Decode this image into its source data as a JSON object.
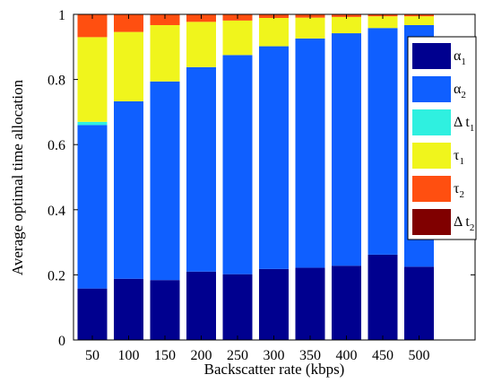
{
  "chart_data": {
    "type": "bar",
    "stacked": true,
    "categories": [
      "50",
      "100",
      "150",
      "200",
      "250",
      "300",
      "350",
      "400",
      "450",
      "500"
    ],
    "xlabel": "Backscatter rate (kbps)",
    "ylabel": "Average optimal time allocation",
    "ylim": [
      0,
      1
    ],
    "yticks": [
      "0",
      "0.2",
      "0.4",
      "0.6",
      "0.8",
      "1"
    ],
    "grid": false,
    "legend_position": "right",
    "series": [
      {
        "name": "α",
        "subscript": "1",
        "color": "#00008f",
        "values": [
          0.158,
          0.188,
          0.184,
          0.21,
          0.202,
          0.218,
          0.222,
          0.228,
          0.262,
          0.225
        ]
      },
      {
        "name": "α",
        "subscript": "2",
        "color": "#0f5fff",
        "values": [
          0.502,
          0.545,
          0.61,
          0.628,
          0.673,
          0.684,
          0.704,
          0.714,
          0.696,
          0.742
        ]
      },
      {
        "name": "Δ t",
        "subscript": "1",
        "color": "#2ff0e0",
        "values": [
          0.01,
          0.0,
          0.0,
          0.0,
          0.0,
          0.0,
          0.0,
          0.0,
          0.0,
          0.0
        ]
      },
      {
        "name": "τ",
        "subscript": "1",
        "color": "#f0f51c",
        "values": [
          0.26,
          0.213,
          0.173,
          0.139,
          0.106,
          0.087,
          0.064,
          0.05,
          0.036,
          0.027
        ]
      },
      {
        "name": "τ",
        "subscript": "2",
        "color": "#ff4f10",
        "values": [
          0.07,
          0.054,
          0.033,
          0.023,
          0.019,
          0.011,
          0.01,
          0.008,
          0.006,
          0.006
        ]
      },
      {
        "name": "Δ t",
        "subscript": "2",
        "color": "#800000",
        "values": [
          0.0,
          0.0,
          0.0,
          0.0,
          0.0,
          0.0,
          0.0,
          0.0,
          0.0,
          0.0
        ]
      }
    ]
  }
}
